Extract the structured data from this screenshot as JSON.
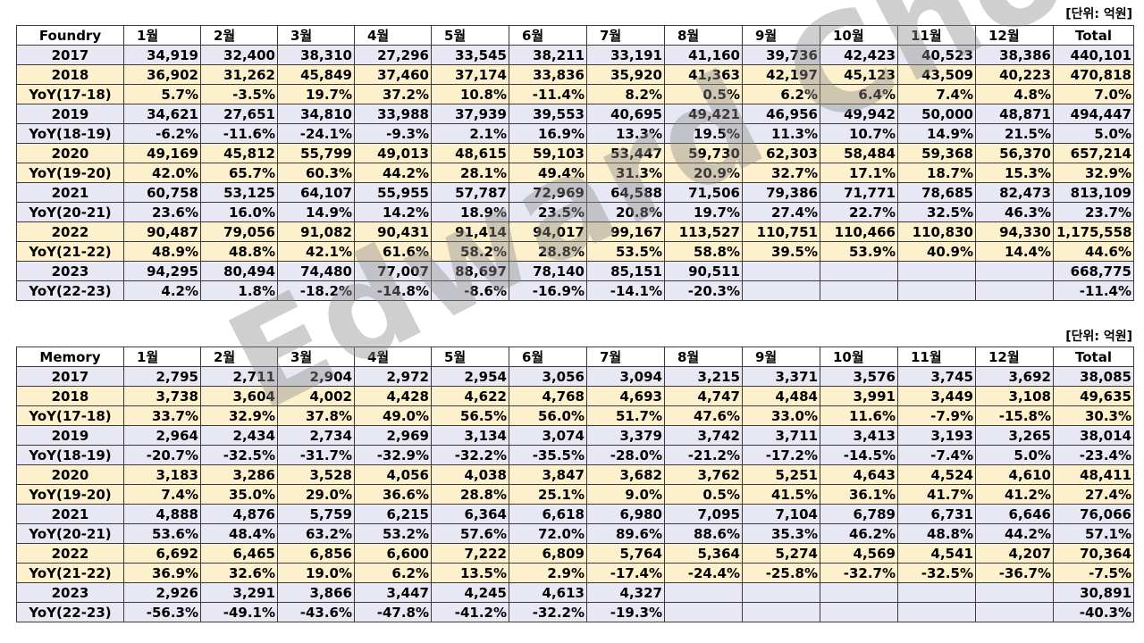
{
  "unit_label": "[단위: 억원]",
  "watermark": "Edward Choi",
  "months": [
    "1월",
    "2월",
    "3월",
    "4월",
    "5월",
    "6월",
    "7월",
    "8월",
    "9월",
    "10월",
    "11월",
    "12월"
  ],
  "total_label": "Total",
  "foundry": {
    "title": "Foundry",
    "rows": [
      {
        "label": "2017",
        "type": "base",
        "values": [
          "34,919",
          "32,400",
          "38,310",
          "27,296",
          "33,545",
          "38,211",
          "33,191",
          "41,160",
          "39,736",
          "42,423",
          "40,523",
          "38,386",
          "440,101"
        ]
      },
      {
        "label": "2018",
        "type": "alt",
        "values": [
          "36,902",
          "31,262",
          "45,849",
          "37,460",
          "37,174",
          "33,836",
          "35,920",
          "41,363",
          "42,197",
          "45,123",
          "43,509",
          "40,223",
          "470,818"
        ]
      },
      {
        "label": "YoY(17-18)",
        "type": "yoy-alt",
        "values": [
          "5.7%",
          "-3.5%",
          "19.7%",
          "37.2%",
          "10.8%",
          "-11.4%",
          "8.2%",
          "0.5%",
          "6.2%",
          "6.4%",
          "7.4%",
          "4.8%",
          "7.0%"
        ]
      },
      {
        "label": "2019",
        "type": "base",
        "values": [
          "34,621",
          "27,651",
          "34,810",
          "33,988",
          "37,939",
          "39,553",
          "40,695",
          "49,421",
          "46,956",
          "49,942",
          "50,000",
          "48,871",
          "494,447"
        ]
      },
      {
        "label": "YoY(18-19)",
        "type": "yoy",
        "values": [
          "-6.2%",
          "-11.6%",
          "-24.1%",
          "-9.3%",
          "2.1%",
          "16.9%",
          "13.3%",
          "19.5%",
          "11.3%",
          "10.7%",
          "14.9%",
          "21.5%",
          "5.0%"
        ]
      },
      {
        "label": "2020",
        "type": "alt",
        "values": [
          "49,169",
          "45,812",
          "55,799",
          "49,013",
          "48,615",
          "59,103",
          "53,447",
          "59,730",
          "62,303",
          "58,484",
          "59,368",
          "56,370",
          "657,214"
        ]
      },
      {
        "label": "YoY(19-20)",
        "type": "yoy-alt",
        "values": [
          "42.0%",
          "65.7%",
          "60.3%",
          "44.2%",
          "28.1%",
          "49.4%",
          "31.3%",
          "20.9%",
          "32.7%",
          "17.1%",
          "18.7%",
          "15.3%",
          "32.9%"
        ]
      },
      {
        "label": "2021",
        "type": "base",
        "values": [
          "60,758",
          "53,125",
          "64,107",
          "55,955",
          "57,787",
          "72,969",
          "64,588",
          "71,506",
          "79,386",
          "71,771",
          "78,685",
          "82,473",
          "813,109"
        ]
      },
      {
        "label": "YoY(20-21)",
        "type": "yoy",
        "values": [
          "23.6%",
          "16.0%",
          "14.9%",
          "14.2%",
          "18.9%",
          "23.5%",
          "20.8%",
          "19.7%",
          "27.4%",
          "22.7%",
          "32.5%",
          "46.3%",
          "23.7%"
        ]
      },
      {
        "label": "2022",
        "type": "alt",
        "values": [
          "90,487",
          "79,056",
          "91,082",
          "90,431",
          "91,414",
          "94,017",
          "99,167",
          "113,527",
          "110,751",
          "110,466",
          "110,830",
          "94,330",
          "1,175,558"
        ]
      },
      {
        "label": "YoY(21-22)",
        "type": "yoy-alt",
        "values": [
          "48.9%",
          "48.8%",
          "42.1%",
          "61.6%",
          "58.2%",
          "28.8%",
          "53.5%",
          "58.8%",
          "39.5%",
          "53.9%",
          "40.9%",
          "14.4%",
          "44.6%"
        ]
      },
      {
        "label": "2023",
        "type": "base",
        "values": [
          "94,295",
          "80,494",
          "74,480",
          "77,007",
          "88,697",
          "78,140",
          "85,151",
          "90,511",
          "",
          "",
          "",
          "",
          "668,775"
        ]
      },
      {
        "label": "YoY(22-23)",
        "type": "yoy",
        "values": [
          "4.2%",
          "1.8%",
          "-18.2%",
          "-14.8%",
          "-8.6%",
          "-16.9%",
          "-14.1%",
          "-20.3%",
          "",
          "",
          "",
          "",
          "-11.4%"
        ]
      }
    ]
  },
  "memory": {
    "title": "Memory",
    "rows": [
      {
        "label": "2017",
        "type": "base",
        "values": [
          "2,795",
          "2,711",
          "2,904",
          "2,972",
          "2,954",
          "3,056",
          "3,094",
          "3,215",
          "3,371",
          "3,576",
          "3,745",
          "3,692",
          "38,085"
        ]
      },
      {
        "label": "2018",
        "type": "alt",
        "values": [
          "3,738",
          "3,604",
          "4,002",
          "4,428",
          "4,622",
          "4,768",
          "4,693",
          "4,747",
          "4,484",
          "3,991",
          "3,449",
          "3,108",
          "49,635"
        ]
      },
      {
        "label": "YoY(17-18)",
        "type": "yoy-alt",
        "values": [
          "33.7%",
          "32.9%",
          "37.8%",
          "49.0%",
          "56.5%",
          "56.0%",
          "51.7%",
          "47.6%",
          "33.0%",
          "11.6%",
          "-7.9%",
          "-15.8%",
          "30.3%"
        ]
      },
      {
        "label": "2019",
        "type": "base",
        "values": [
          "2,964",
          "2,434",
          "2,734",
          "2,969",
          "3,134",
          "3,074",
          "3,379",
          "3,742",
          "3,711",
          "3,413",
          "3,193",
          "3,265",
          "38,014"
        ]
      },
      {
        "label": "YoY(18-19)",
        "type": "yoy",
        "values": [
          "-20.7%",
          "-32.5%",
          "-31.7%",
          "-32.9%",
          "-32.2%",
          "-35.5%",
          "-28.0%",
          "-21.2%",
          "-17.2%",
          "-14.5%",
          "-7.4%",
          "5.0%",
          "-23.4%"
        ]
      },
      {
        "label": "2020",
        "type": "alt",
        "values": [
          "3,183",
          "3,286",
          "3,528",
          "4,056",
          "4,038",
          "3,847",
          "3,682",
          "3,762",
          "5,251",
          "4,643",
          "4,524",
          "4,610",
          "48,411"
        ]
      },
      {
        "label": "YoY(19-20)",
        "type": "yoy-alt",
        "values": [
          "7.4%",
          "35.0%",
          "29.0%",
          "36.6%",
          "28.8%",
          "25.1%",
          "9.0%",
          "0.5%",
          "41.5%",
          "36.1%",
          "41.7%",
          "41.2%",
          "27.4%"
        ]
      },
      {
        "label": "2021",
        "type": "base",
        "values": [
          "4,888",
          "4,876",
          "5,759",
          "6,215",
          "6,364",
          "6,618",
          "6,980",
          "7,095",
          "7,104",
          "6,789",
          "6,731",
          "6,646",
          "76,066"
        ]
      },
      {
        "label": "YoY(20-21)",
        "type": "yoy",
        "values": [
          "53.6%",
          "48.4%",
          "63.2%",
          "53.2%",
          "57.6%",
          "72.0%",
          "89.6%",
          "88.6%",
          "35.3%",
          "46.2%",
          "48.8%",
          "44.2%",
          "57.1%"
        ]
      },
      {
        "label": "2022",
        "type": "alt",
        "values": [
          "6,692",
          "6,465",
          "6,856",
          "6,600",
          "7,222",
          "6,809",
          "5,764",
          "5,364",
          "5,274",
          "4,569",
          "4,541",
          "4,207",
          "70,364"
        ]
      },
      {
        "label": "YoY(21-22)",
        "type": "yoy-alt",
        "values": [
          "36.9%",
          "32.6%",
          "19.0%",
          "6.2%",
          "13.5%",
          "2.9%",
          "-17.4%",
          "-24.4%",
          "-25.8%",
          "-32.7%",
          "-32.5%",
          "-36.7%",
          "-7.5%"
        ]
      },
      {
        "label": "2023",
        "type": "base",
        "values": [
          "2,926",
          "3,291",
          "3,866",
          "3,447",
          "4,245",
          "4,613",
          "4,327",
          "",
          "",
          "",
          "",
          "",
          "30,891"
        ]
      },
      {
        "label": "YoY(22-23)",
        "type": "yoy",
        "values": [
          "-56.3%",
          "-49.1%",
          "-43.6%",
          "-47.8%",
          "-41.2%",
          "-32.2%",
          "-19.3%",
          "",
          "",
          "",
          "",
          "",
          "-40.3%"
        ]
      }
    ]
  },
  "colors": {
    "base_row": "#e8e8f4",
    "alt_row": "#fdf0cc",
    "negative": "#ff0000",
    "border": "#3a3a3a"
  }
}
